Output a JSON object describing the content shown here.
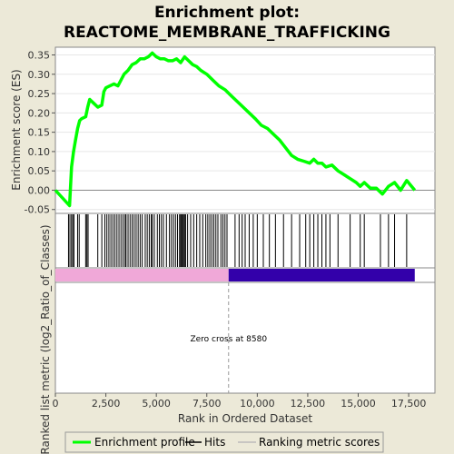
{
  "chart_data": {
    "type": "line",
    "title_line1": "Enrichment plot:",
    "title_line2": "REACTOME_MEMBRANE_TRAFFICKING",
    "ylabel_top": "Enrichment score (ES)",
    "ylabel_bottom": "Ranked list metric (log2_Ratio_of_Classes)",
    "xlabel": "Rank in Ordered Dataset",
    "xlim": [
      0,
      18800
    ],
    "ylim": [
      -0.06,
      0.37
    ],
    "x_ticks": [
      0,
      2500,
      5000,
      7500,
      10000,
      12500,
      15000,
      17500
    ],
    "x_tick_labels": [
      "0",
      "2,500",
      "5,000",
      "7,500",
      "10,000",
      "12,500",
      "15,000",
      "17,500"
    ],
    "y_ticks": [
      -0.05,
      0.0,
      0.05,
      0.1,
      0.15,
      0.2,
      0.25,
      0.3,
      0.35
    ],
    "y_tick_labels": [
      "-0.05",
      "0.00",
      "0.05",
      "0.10",
      "0.15",
      "0.20",
      "0.25",
      "0.30",
      "0.35"
    ],
    "annotation": "Zero cross at 8580",
    "zero_cross": 8580,
    "n_genes": 17800,
    "legend": [
      "Enrichment profile",
      "Hits",
      "Ranking metric scores"
    ],
    "colors": {
      "profile": "#00ff00",
      "positive_bar": "#f0a8d8",
      "negative_bar": "#3300aa",
      "background": "#ece9d8",
      "plot_bg": "#ffffff"
    },
    "series": [
      {
        "name": "Enrichment profile",
        "x": [
          0,
          700,
          750,
          800,
          900,
          1000,
          1100,
          1200,
          1300,
          1500,
          1600,
          1700,
          1900,
          2100,
          2300,
          2400,
          2500,
          2700,
          2900,
          3100,
          3300,
          3400,
          3600,
          3800,
          4000,
          4200,
          4400,
          4600,
          4800,
          5000,
          5200,
          5400,
          5600,
          5800,
          6000,
          6200,
          6400,
          6600,
          6800,
          7000,
          7200,
          7500,
          7800,
          8100,
          8400,
          8700,
          9000,
          9300,
          9600,
          9900,
          10200,
          10500,
          10800,
          11100,
          11400,
          11700,
          12000,
          12300,
          12600,
          12800,
          13000,
          13200,
          13400,
          13700,
          14000,
          14300,
          14600,
          14900,
          15100,
          15300,
          15600,
          15900,
          16200,
          16500,
          16800,
          17100,
          17400,
          17800
        ],
        "y": [
          0.0,
          -0.04,
          0.01,
          0.06,
          0.1,
          0.13,
          0.16,
          0.18,
          0.185,
          0.19,
          0.215,
          0.235,
          0.225,
          0.215,
          0.22,
          0.255,
          0.265,
          0.27,
          0.275,
          0.27,
          0.29,
          0.3,
          0.31,
          0.325,
          0.33,
          0.34,
          0.34,
          0.345,
          0.355,
          0.345,
          0.34,
          0.34,
          0.335,
          0.335,
          0.34,
          0.33,
          0.345,
          0.335,
          0.325,
          0.32,
          0.31,
          0.3,
          0.285,
          0.27,
          0.26,
          0.245,
          0.23,
          0.215,
          0.2,
          0.185,
          0.168,
          0.16,
          0.145,
          0.13,
          0.11,
          0.09,
          0.08,
          0.075,
          0.07,
          0.08,
          0.07,
          0.07,
          0.06,
          0.065,
          0.05,
          0.04,
          0.03,
          0.02,
          0.01,
          0.02,
          0.005,
          0.005,
          -0.01,
          0.01,
          0.02,
          0.0,
          0.025,
          0.0
        ]
      }
    ],
    "hits": [
      650,
      720,
      800,
      860,
      920,
      1100,
      1180,
      1500,
      1560,
      1620,
      2100,
      2300,
      2450,
      2550,
      2650,
      2750,
      2850,
      2950,
      3050,
      3150,
      3250,
      3350,
      3450,
      3500,
      3600,
      3700,
      3800,
      3900,
      4000,
      4100,
      4200,
      4300,
      4450,
      4550,
      4650,
      4750,
      4800,
      4900,
      5050,
      5150,
      5250,
      5350,
      5500,
      5650,
      5750,
      5850,
      5950,
      6050,
      6150,
      6200,
      6250,
      6300,
      6350,
      6400,
      6450,
      6550,
      6700,
      6850,
      7000,
      7150,
      7300,
      7450,
      7550,
      7650,
      7750,
      7850,
      7950,
      8050,
      8200,
      8300,
      8400,
      8500,
      8900,
      9100,
      9250,
      9400,
      9600,
      9800,
      10000,
      10300,
      10600,
      10900,
      11300,
      11700,
      12100,
      12400,
      12600,
      12800,
      13000,
      13200,
      13400,
      13600,
      14000,
      14600,
      15100,
      15300,
      16100,
      16500,
      16800,
      17400
    ]
  }
}
